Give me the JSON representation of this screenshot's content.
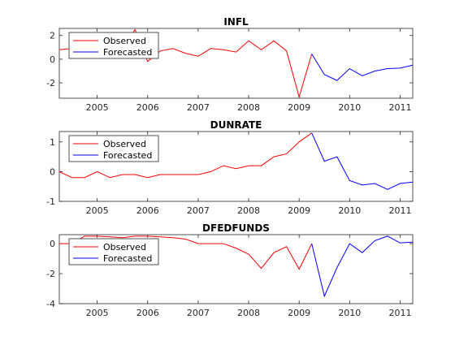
{
  "chart_data": [
    {
      "type": "line",
      "title": "INFL",
      "xlim": [
        2004.25,
        2011.25
      ],
      "ylim": [
        -3.3,
        2.6
      ],
      "xticks": [
        2005,
        2006,
        2007,
        2008,
        2009,
        2010,
        2011
      ],
      "yticks": [
        2,
        0,
        -2
      ],
      "legend": "top-left",
      "series": [
        {
          "name": "Observed",
          "color": "#ff0000",
          "x": [
            2004.25,
            2004.5,
            2004.75,
            2005.0,
            2005.25,
            2005.5,
            2005.75,
            2006.0,
            2006.25,
            2006.5,
            2006.75,
            2007.0,
            2007.25,
            2007.5,
            2007.75,
            2008.0,
            2008.25,
            2008.5,
            2008.75,
            2009.0,
            2009.25
          ],
          "y": [
            0.8,
            0.9,
            0.5,
            0.8,
            1.0,
            0.9,
            2.5,
            -0.2,
            0.7,
            0.9,
            0.5,
            0.25,
            0.9,
            0.8,
            0.6,
            1.55,
            0.8,
            1.55,
            0.7,
            -3.2,
            0.45
          ]
        },
        {
          "name": "Forecasted",
          "color": "#0000ff",
          "x": [
            2009.25,
            2009.5,
            2009.75,
            2010.0,
            2010.25,
            2010.5,
            2010.75,
            2011.0,
            2011.25
          ],
          "y": [
            0.45,
            -1.3,
            -1.8,
            -0.8,
            -1.4,
            -1.0,
            -0.8,
            -0.75,
            -0.5
          ]
        }
      ]
    },
    {
      "type": "line",
      "title": "DUNRATE",
      "xlim": [
        2004.25,
        2011.25
      ],
      "ylim": [
        -1,
        1.35
      ],
      "xticks": [
        2005,
        2006,
        2007,
        2008,
        2009,
        2010,
        2011
      ],
      "yticks": [
        1,
        0,
        -1
      ],
      "legend": "top-left",
      "series": [
        {
          "name": "Observed",
          "color": "#ff0000",
          "x": [
            2004.25,
            2004.5,
            2004.75,
            2005.0,
            2005.25,
            2005.5,
            2005.75,
            2006.0,
            2006.25,
            2006.5,
            2006.75,
            2007.0,
            2007.25,
            2007.5,
            2007.75,
            2008.0,
            2008.25,
            2008.5,
            2008.75,
            2009.0,
            2009.25
          ],
          "y": [
            0.0,
            -0.2,
            -0.2,
            0.0,
            -0.2,
            -0.1,
            -0.1,
            -0.2,
            -0.1,
            -0.1,
            -0.1,
            -0.1,
            0.0,
            0.2,
            0.1,
            0.2,
            0.2,
            0.5,
            0.6,
            1.0,
            1.3
          ]
        },
        {
          "name": "Forecasted",
          "color": "#0000ff",
          "x": [
            2009.25,
            2009.5,
            2009.75,
            2010.0,
            2010.25,
            2010.5,
            2010.75,
            2011.0,
            2011.25
          ],
          "y": [
            1.3,
            0.35,
            0.5,
            -0.3,
            -0.45,
            -0.4,
            -0.6,
            -0.4,
            -0.35
          ]
        }
      ]
    },
    {
      "type": "line",
      "title": "DFEDFUNDS",
      "xlim": [
        2004.25,
        2011.25
      ],
      "ylim": [
        -4,
        0.6
      ],
      "xticks": [
        2005,
        2006,
        2007,
        2008,
        2009,
        2010,
        2011
      ],
      "yticks": [
        0,
        -2,
        -4
      ],
      "legend": "top-left",
      "series": [
        {
          "name": "Observed",
          "color": "#ff0000",
          "x": [
            2004.25,
            2004.5,
            2004.75,
            2005.0,
            2005.25,
            2005.5,
            2005.75,
            2006.0,
            2006.25,
            2006.5,
            2006.75,
            2007.0,
            2007.25,
            2007.5,
            2007.75,
            2008.0,
            2008.25,
            2008.5,
            2008.75,
            2009.0,
            2009.25
          ],
          "y": [
            0.0,
            0.0,
            0.5,
            0.5,
            0.45,
            0.4,
            0.5,
            0.5,
            0.45,
            0.4,
            0.3,
            0.0,
            0.0,
            0.0,
            -0.3,
            -0.7,
            -1.65,
            -0.6,
            -0.2,
            -1.7,
            0.0
          ]
        },
        {
          "name": "Forecasted",
          "color": "#0000ff",
          "x": [
            2009.25,
            2009.5,
            2009.75,
            2010.0,
            2010.25,
            2010.5,
            2010.75,
            2011.0,
            2011.25
          ],
          "y": [
            0.0,
            -3.5,
            -1.6,
            0.0,
            -0.6,
            0.2,
            0.5,
            0.05,
            0.1
          ]
        }
      ]
    }
  ]
}
